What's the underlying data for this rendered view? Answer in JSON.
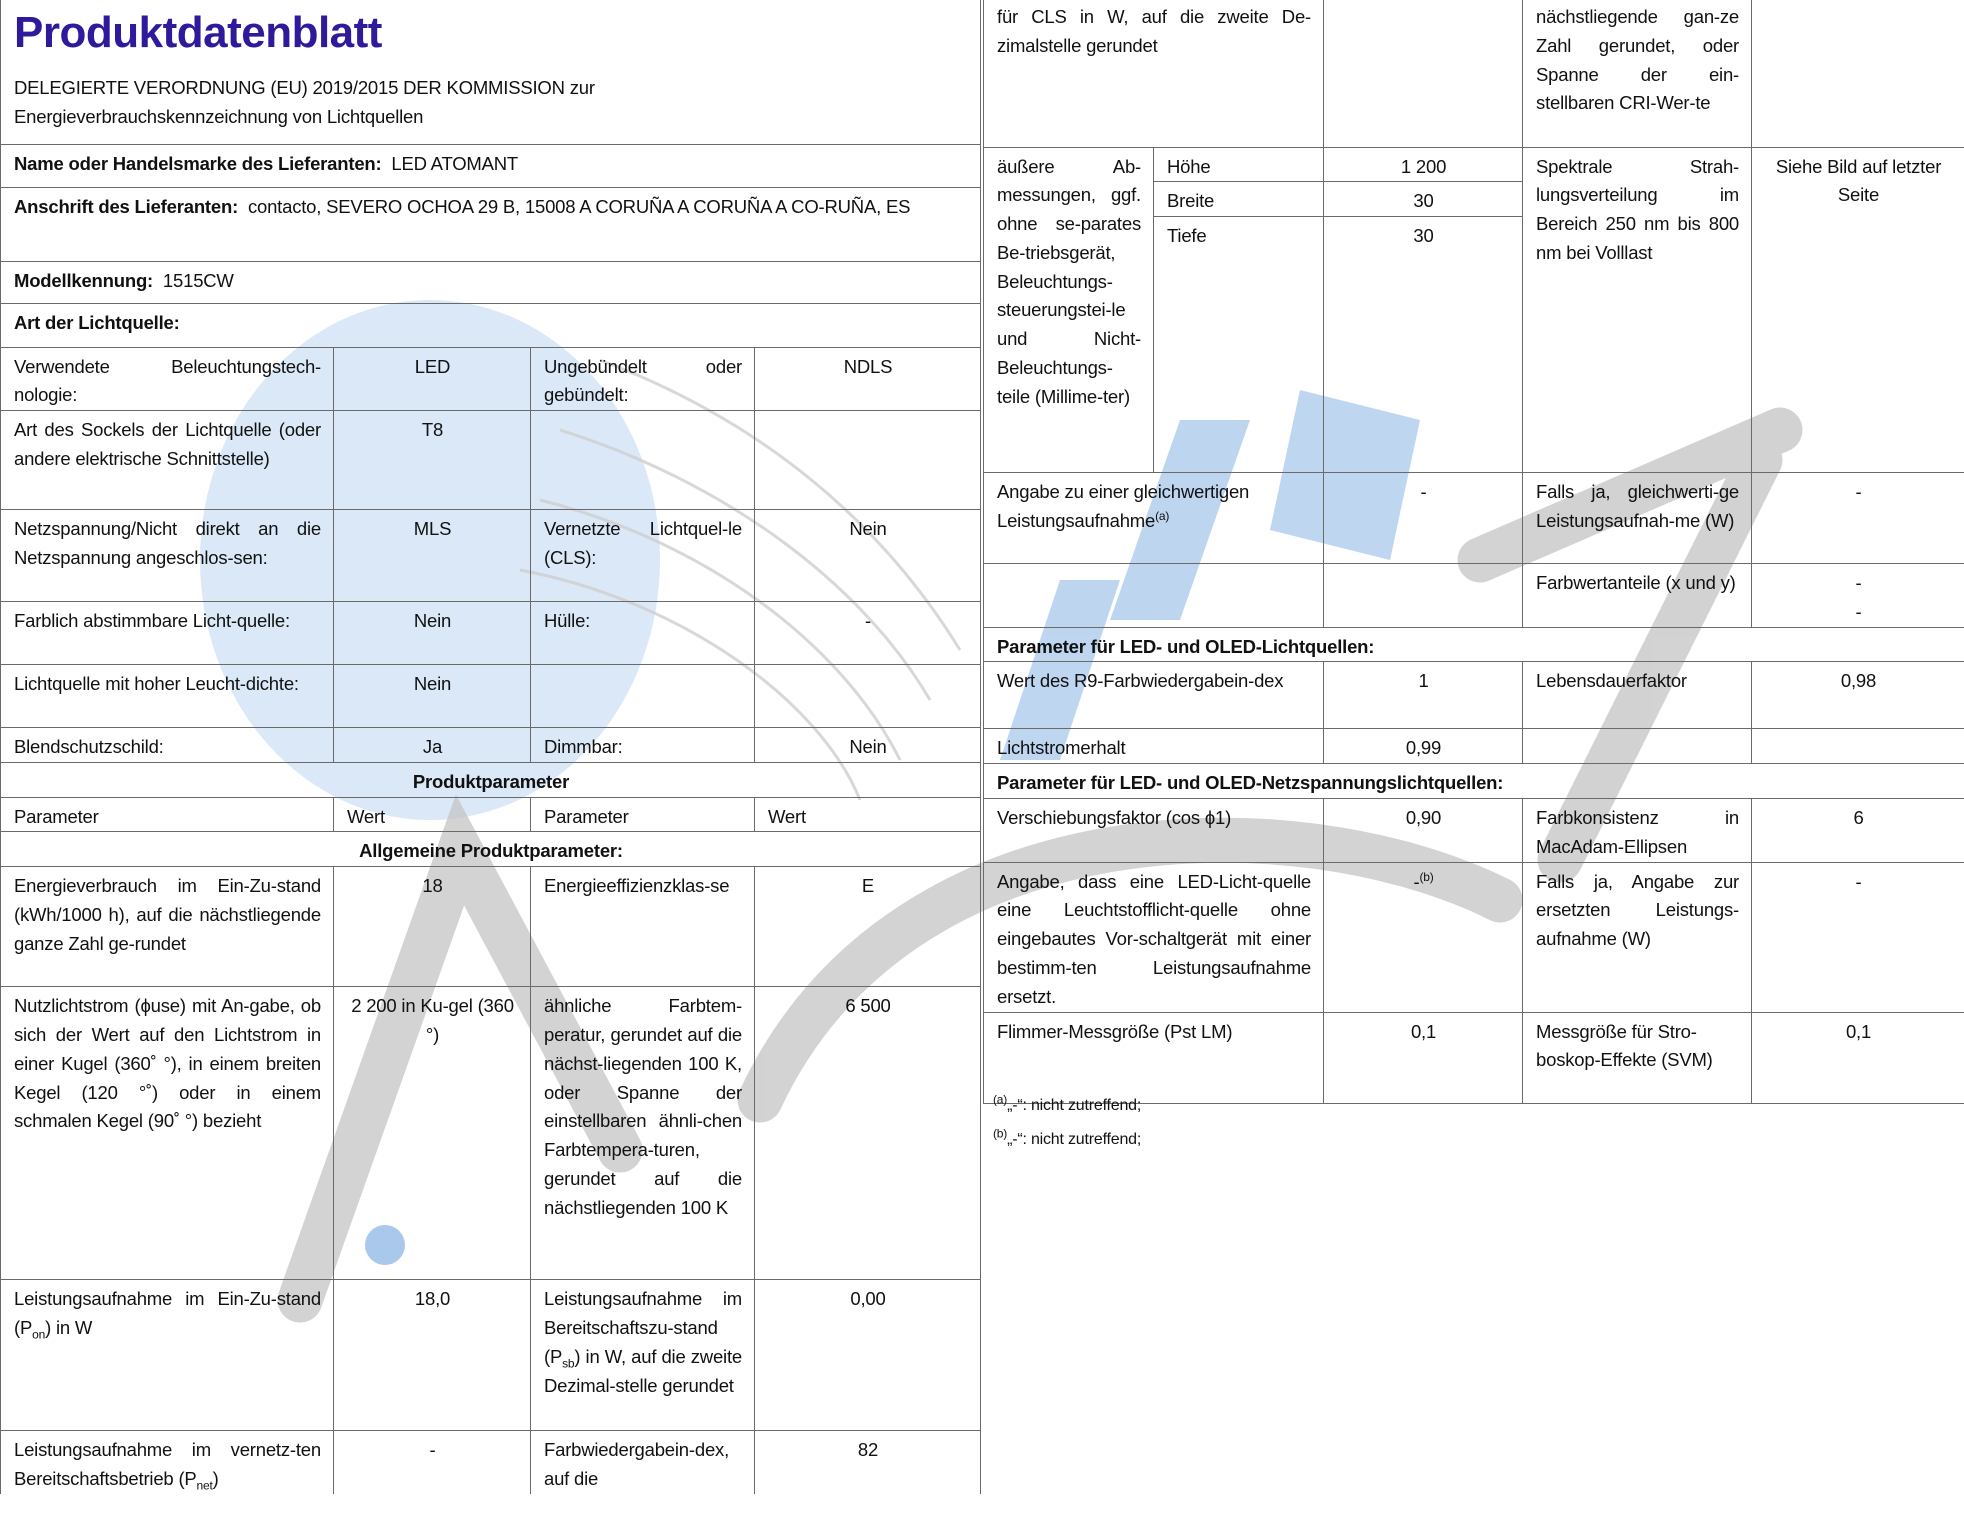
{
  "header": {
    "title": "Produktdatenblatt",
    "subtitle_line1": "DELEGIERTE VERORDNUNG (EU) 2019/2015 DER KOMMISSION zur",
    "subtitle_line2": "Energieverbrauchskennzeichnung von Lichtquellen"
  },
  "supplier": {
    "name_label": "Name oder Handelsmarke des Lieferanten:",
    "name_value": "LED ATOMANT",
    "address_label": "Anschrift des Lieferanten:",
    "address_value": "contacto, SEVERO OCHOA 29 B, 15008 A CORUÑA A CORUÑA A CO-RUÑA, ES",
    "model_label": "Modellkennung:",
    "model_value": "1515CW",
    "type_label": "Art der Lichtquelle:"
  },
  "light_type": [
    [
      "Verwendete Beleuchtungstech-nologie:",
      "LED",
      "Ungebündelt oder gebündelt:",
      "NDLS"
    ],
    [
      "Art des Sockels der Lichtquelle (oder andere elektrische Schnittstelle)",
      "T8",
      "",
      ""
    ],
    [
      "Netzspannung/Nicht direkt an die Netzspannung angeschlos-sen:",
      "MLS",
      "Vernetzte Lichtquel-le (CLS):",
      "Nein"
    ],
    [
      "Farblich abstimmbare Licht-quelle:",
      "Nein",
      "Hülle:",
      "-"
    ],
    [
      "Lichtquelle mit hoher Leucht-dichte:",
      "Nein",
      "",
      ""
    ],
    [
      "Blendschutzschild:",
      "Ja",
      "Dimmbar:",
      "Nein"
    ]
  ],
  "product_params_heading": "Produktparameter",
  "columns": [
    "Parameter",
    "Wert",
    "Parameter",
    "Wert"
  ],
  "general_heading": "Allgemeine Produktparameter:",
  "general": {
    "energy": [
      "Energieverbrauch im Ein-Zu-stand (kWh/1000 h), auf die nächstliegende ganze Zahl ge-rundet",
      "18",
      "Energieeffizienzklas-se",
      "E"
    ],
    "flux": [
      "Nutzlichtstrom (ϕuse) mit An-gabe, ob sich der Wert auf den Lichtstrom in einer Kugel (360˚ °), in einem breiten Kegel (120 °˚) oder in einem schmalen Kegel (90˚ °) bezieht",
      "2 200 in Ku-gel (360 °)",
      "ähnliche Farbtem-peratur, gerundet auf die nächst-liegenden 100 K, oder Spanne der einstellbaren ähnli-chen Farbtempera-turen, gerundet auf die nächstliegenden 100 K",
      "6 500"
    ],
    "pon": {
      "pre": "Leistungsaufnahme im Ein-Zu-stand (P",
      "sub": "on",
      "post": ") in W",
      "value": "18,0"
    },
    "psb": {
      "pre": "Leistungsaufnahme im Bereitschaftszu-stand (P",
      "sub": "sb",
      "post": ") in W, auf die zweite Dezimal-stelle gerundet",
      "value": "0,00"
    },
    "pnet": {
      "pre": "Leistungsaufnahme im vernetz-ten Bereitschaftsbetrieb (P",
      "sub": "net",
      "post": ")",
      "value": "-"
    },
    "cri": {
      "label": "Farbwiedergabein-dex, auf die",
      "value": "82"
    }
  },
  "right": {
    "pnet_cont": "für CLS in W, auf die zweite De-zimalstelle gerundet",
    "cri_cont": "nächstliegende gan-ze Zahl gerundet, oder Spanne der ein-stellbaren CRI-Wer-te",
    "dims_label": "äußere Ab-messungen, ggf. ohne se-parates Be-triebsgerät, Beleuchtungs-steuerungstei-le und Nicht-Beleuchtungs-teile (Millime-ter)",
    "dims": [
      [
        "Höhe",
        "1 200"
      ],
      [
        "Breite",
        "30"
      ],
      [
        "Tiefe",
        "30"
      ]
    ],
    "spectral": [
      "Spektrale Strah-lungsverteilung im Bereich 250 nm bis 800 nm bei Volllast",
      "Siehe Bild auf letzter Seite"
    ],
    "equiv": {
      "label": "Angabe zu einer gleichwertigen Leistungsaufnahme",
      "sup": "(a)",
      "value": "-",
      "label2": "Falls ja, gleichwerti-ge Leistungsaufnah-me (W)",
      "value2": "-"
    },
    "chroma": {
      "label": "Farbwertanteile (x und y)",
      "value1": "-",
      "value2": "-"
    },
    "led_heading": "Parameter für LED- und OLED-Lichtquellen:",
    "r9": [
      "Wert des R9-Farbwiedergabein-dex",
      "1",
      "Lebensdauerfaktor",
      "0,98"
    ],
    "maintenance": [
      "Lichtstromerhalt",
      "0,99"
    ],
    "mains_heading": "Parameter für LED- und OLED-Netzspannungslichtquellen:",
    "displacement": [
      "Verschiebungsfaktor (cos ϕ1)",
      "0,90",
      "Farbkonsistenz in MacAdam-Ellipsen",
      "6"
    ],
    "replace": {
      "label": "Angabe, dass eine LED-Licht-quelle eine Leuchtstofflicht-quelle ohne eingebautes Vor-schaltgerät mit einer bestimm-ten Leistungsaufnahme ersetzt.",
      "value": "-",
      "sup": "(b)",
      "label2": "Falls ja, Angabe zur ersetzten Leistungs-aufnahme (W)",
      "value2": "-"
    },
    "flicker": [
      "Flimmer-Messgröße (Pst LM)",
      "0,1",
      "Messgröße für Stro-boskop-Effekte (SVM)",
      "0,1"
    ]
  },
  "footnotes": [
    {
      "mark": "(a)",
      "text": "„-“: nicht zutreffend;"
    },
    {
      "mark": "(b)",
      "text": "„-“: nicht zutreffend;"
    }
  ],
  "colors": {
    "title": "#2e1a9a",
    "watermark_blue": "#a9c8ec",
    "watermark_gray": "#c4c4c4"
  }
}
